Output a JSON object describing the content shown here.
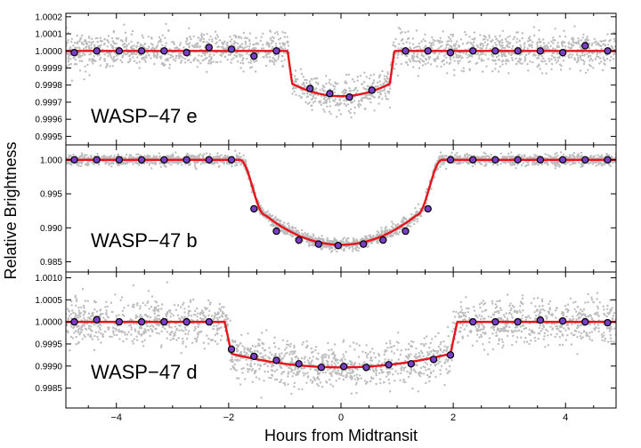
{
  "chart_data": {
    "type": "scatter",
    "xlabel": "Hours from Midtransit",
    "ylabel": "Relative Brightness",
    "xlim": [
      -4.9,
      4.9
    ],
    "x_ticks": [
      -4,
      -2,
      0,
      2,
      4
    ],
    "x_tick_labels": [
      "−4",
      "−2",
      "0",
      "2",
      "4"
    ],
    "colors": {
      "raw": "#bdbdbd",
      "model": "#e8141c",
      "binned_fill": "#7a3fc4",
      "binned_edge": "#000000"
    },
    "panels": [
      {
        "label": "WASP−47 e",
        "ylim": [
          0.99945,
          1.00022
        ],
        "y_ticks": [
          0.9995,
          0.9996,
          0.9997,
          0.9998,
          0.9999,
          1.0,
          1.0001,
          1.0002
        ],
        "y_tick_labels": [
          "0.9995",
          "0.9996",
          "0.9997",
          "0.9998",
          "0.9999",
          "1.0000",
          "1.0001",
          "1.0002"
        ],
        "model": {
          "depth": 0.000265,
          "t14_half": 0.95,
          "ingress": 0.08,
          "limb_darkening": 0.55,
          "shape": "box_ld"
        },
        "scatter_sigma": 5e-05,
        "binned": {
          "x": [
            -4.75,
            -4.35,
            -3.95,
            -3.55,
            -3.15,
            -2.75,
            -2.35,
            -1.95,
            -1.55,
            -1.15,
            -0.55,
            -0.2,
            0.15,
            0.55,
            1.15,
            1.55,
            1.95,
            2.35,
            2.75,
            3.15,
            3.55,
            3.95,
            4.35,
            4.75
          ],
          "y": [
            0.99999,
            1.0,
            1.0,
            1.0,
            1.0,
            0.99999,
            1.00002,
            1.00001,
            0.99997,
            1.0,
            0.99978,
            0.99975,
            0.99973,
            0.99977,
            1.0,
            1.0,
            0.99999,
            1.0,
            1.0,
            1.0,
            1.0,
            0.99999,
            1.00003,
            1.0
          ]
        }
      },
      {
        "label": "WASP−47 b",
        "ylim": [
          0.9835,
          1.0022
        ],
        "y_ticks": [
          0.985,
          0.99,
          0.995,
          1.0
        ],
        "y_tick_labels": [
          "0.985",
          "0.990",
          "0.995",
          "1.000"
        ],
        "model": {
          "depth": 0.0125,
          "t14_half": 1.8,
          "ingress": 0.45,
          "limb_darkening": 0.62,
          "shape": "smooth_ld"
        },
        "scatter_sigma": 0.0004,
        "binned": {
          "x": [
            -4.75,
            -4.35,
            -3.95,
            -3.55,
            -3.15,
            -2.75,
            -2.35,
            -1.95,
            -1.55,
            -1.15,
            -0.75,
            -0.4,
            -0.05,
            0.4,
            0.75,
            1.15,
            1.55,
            1.95,
            2.35,
            2.75,
            3.15,
            3.55,
            3.95,
            4.35,
            4.75
          ],
          "y": [
            1.0,
            1.0,
            1.0,
            1.0,
            1.0,
            1.0,
            1.0,
            1.0,
            0.9928,
            0.9895,
            0.9882,
            0.9876,
            0.9874,
            0.9876,
            0.9882,
            0.9895,
            0.9928,
            1.0,
            1.0,
            1.0,
            1.0,
            1.0,
            1.0,
            1.0,
            1.0
          ]
        }
      },
      {
        "label": "WASP−47 d",
        "ylim": [
          0.99805,
          1.00113
        ],
        "y_ticks": [
          0.9985,
          0.999,
          0.9995,
          1.0,
          1.0005,
          1.001
        ],
        "y_tick_labels": [
          "0.9985",
          "0.9990",
          "0.9995",
          "1.0000",
          "1.0005",
          "1.0010"
        ],
        "model": {
          "depth": 0.00103,
          "t14_half": 2.07,
          "ingress": 0.12,
          "limb_darkening": 0.6,
          "shape": "box_ld"
        },
        "scatter_sigma": 0.00025,
        "binned": {
          "x": [
            -4.75,
            -4.35,
            -3.95,
            -3.55,
            -3.15,
            -2.75,
            -2.35,
            -1.95,
            -1.55,
            -1.15,
            -0.75,
            -0.35,
            0.05,
            0.45,
            0.85,
            1.25,
            1.65,
            1.95,
            2.35,
            2.75,
            3.15,
            3.55,
            3.95,
            4.35,
            4.75
          ],
          "y": [
            1.0,
            1.00005,
            1.0,
            1.0,
            1.0,
            1.0,
            1.0,
            0.99938,
            0.99922,
            0.99913,
            0.99905,
            0.99897,
            0.99899,
            0.99897,
            0.99903,
            0.99905,
            0.99915,
            0.99925,
            1.0,
            1.0,
            1.0,
            1.00004,
            1.00002,
            1.0,
            0.99998
          ]
        }
      }
    ]
  }
}
